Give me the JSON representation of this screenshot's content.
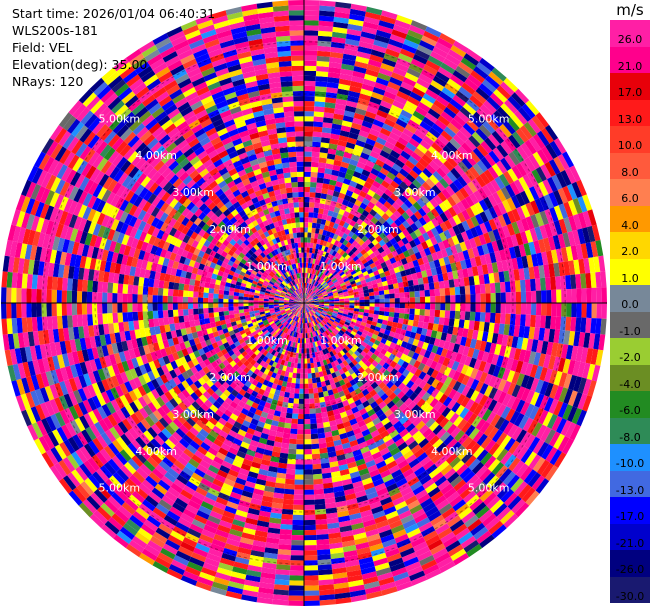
{
  "header": {
    "start_time": "Start time: 2026/01/04 06:40:31",
    "instrument": "WLS200s-181",
    "field": "Field: VEL",
    "elevation": "Elevation(deg): 35.00",
    "nrays": "NRays: 120"
  },
  "colorbar": {
    "unit": "m/s",
    "labels": [
      "26.0",
      "21.0",
      "17.0",
      "13.0",
      "10.0",
      "8.0",
      "6.0",
      "4.0",
      "2.0",
      "1.0",
      "0.0",
      "-1.0",
      "-2.0",
      "-4.0",
      "-6.0",
      "-8.0",
      "-10.0",
      "-13.0",
      "-17.0",
      "-21.0",
      "-26.0",
      "-30.0"
    ],
    "colors": [
      "#ff1fa5",
      "#ff008c",
      "#e8000a",
      "#ff1a1a",
      "#ff3c28",
      "#ff5a3c",
      "#ff7f50",
      "#ff9900",
      "#ffd700",
      "#ffff00",
      "#778899",
      "#696969",
      "#9acd32",
      "#6b8e23",
      "#228b22",
      "#2e8b57",
      "#1e90ff",
      "#4169e1",
      "#0000ff",
      "#0000cd",
      "#000080",
      "#191970"
    ]
  },
  "chart_data": {
    "type": "heatmap",
    "projection": "polar PPI",
    "field": "VEL",
    "units": "m/s",
    "nrays": 120,
    "range_rings_km": [
      1.0,
      2.0,
      3.0,
      4.0,
      5.0
    ],
    "ring_labels": [
      "1.00km",
      "2.00km",
      "3.00km",
      "4.00km",
      "5.00km"
    ],
    "max_range_km": 5.8,
    "value_range": [
      -30,
      26
    ],
    "grid": true
  }
}
